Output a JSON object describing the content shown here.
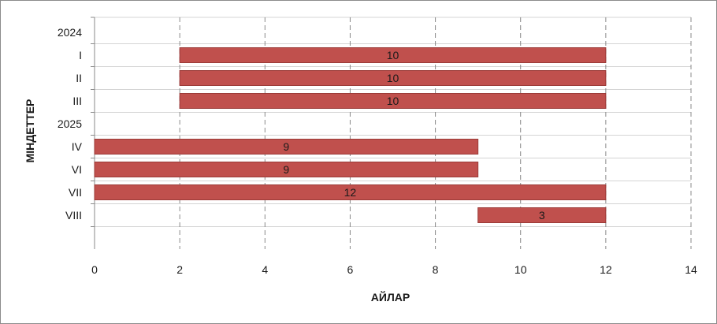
{
  "chart_data": {
    "type": "bar",
    "orientation": "horizontal",
    "xlabel": "АЙЛАР",
    "ylabel": "МІНДЕТТЕР",
    "xlim": [
      0,
      14
    ],
    "xticks": [
      0,
      2,
      4,
      6,
      8,
      10,
      12,
      14
    ],
    "grid": "vertical dashed",
    "colors": {
      "bar": "#c0504d",
      "bar_edge": "#9b3b38",
      "grid": "#8a8a8a"
    },
    "rows": [
      {
        "label": "2024",
        "start": null,
        "value": null
      },
      {
        "label": "I",
        "start": 2,
        "value": 10
      },
      {
        "label": "II",
        "start": 2,
        "value": 10
      },
      {
        "label": "III",
        "start": 2,
        "value": 10
      },
      {
        "label": "2025",
        "start": null,
        "value": null
      },
      {
        "label": "IV",
        "start": 0,
        "value": 9
      },
      {
        "label": "VI",
        "start": 0,
        "value": 9
      },
      {
        "label": "VII",
        "start": 0,
        "value": 12
      },
      {
        "label": "VIII",
        "start": 9,
        "value": 3
      },
      {
        "label": "",
        "start": null,
        "value": null
      },
      {
        "label": "",
        "start": null,
        "value": null
      }
    ]
  }
}
